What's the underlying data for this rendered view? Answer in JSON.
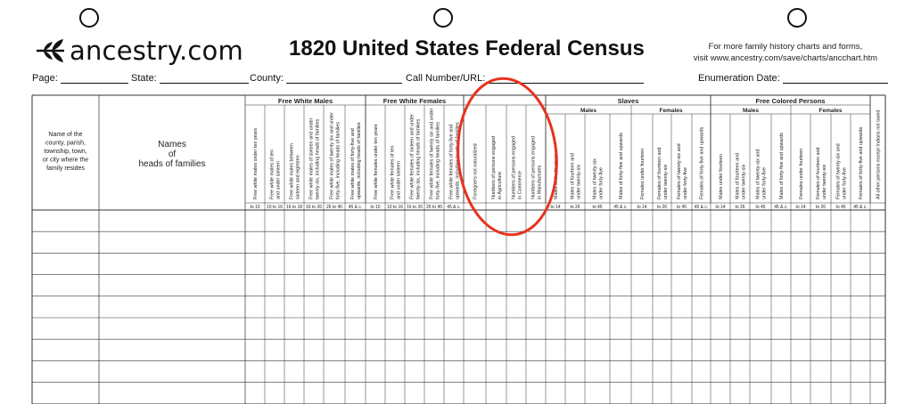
{
  "logo": {
    "text": "ancestry.com"
  },
  "title": "1820 United States Federal Census",
  "promo": {
    "line1": "For more family history charts and forms,",
    "line2": "visit www.ancestry.com/save/charts/ancchart.htm"
  },
  "fields": {
    "page": "Page:",
    "state": "State:",
    "county": "County:",
    "call_number": "Call Number/URL:",
    "enumeration_date": "Enumeration Date:"
  },
  "left_headers": {
    "residence": [
      "Name of the",
      "county, parish,",
      "township, town,",
      "or city where the",
      "family resides"
    ],
    "names": [
      "Names",
      "of",
      "heads of families"
    ]
  },
  "groups": {
    "free_white_males": "Free White Males",
    "free_white_females": "Free White Females",
    "slaves": "Slaves",
    "free_colored": "Free Colored Persons",
    "males": "Males",
    "females": "Females"
  },
  "columns": [
    {
      "lines": [
        "Free white males under ten years"
      ],
      "age": "to 10"
    },
    {
      "lines": [
        "Free white males of ten",
        "and under sixteen"
      ],
      "age": "10 to 16"
    },
    {
      "lines": [
        "Free white males between",
        "sixteen and eighteen"
      ],
      "age": "16 to 18"
    },
    {
      "lines": [
        "Free white males of sixteen and under",
        "twenty-six, including heads of families"
      ],
      "age": "16 to 26"
    },
    {
      "lines": [
        "Free white males of twenty six and under",
        "forty-five, including heads of families"
      ],
      "age": "26 to 45"
    },
    {
      "lines": [
        "Free white males of forty-five and",
        "upwards, including heads of families"
      ],
      "age": "45 & c."
    },
    {
      "lines": [
        "Free white females under ten years"
      ],
      "age": "to 10"
    },
    {
      "lines": [
        "Free white females of ten",
        "and under sixteen"
      ],
      "age": "10 to 16"
    },
    {
      "lines": [
        "Free white females of sixteen and under",
        "twenty-six, including heads of families"
      ],
      "age": "16 to 26"
    },
    {
      "lines": [
        "Free white females of twenty six and under",
        "forty-five, including heads of families"
      ],
      "age": "26 to 45"
    },
    {
      "lines": [
        "Free white females of forty-five and",
        "upwards, including heads of families"
      ],
      "age": "45 & c."
    },
    {
      "lines": [
        "Foreigners not naturalized"
      ],
      "age": ""
    },
    {
      "lines": [
        "Numbers of persons engaged",
        "in Agriculture"
      ],
      "age": ""
    },
    {
      "lines": [
        "Numbers of persons engaged",
        "in Commerce"
      ],
      "age": ""
    },
    {
      "lines": [
        "Numbers of persons engaged",
        "in Manufactures"
      ],
      "age": ""
    },
    {
      "lines": [
        "Males under fourteen"
      ],
      "age": "to 14"
    },
    {
      "lines": [
        "Males of fourteen and",
        "under twenty-six"
      ],
      "age": "to 26"
    },
    {
      "lines": [
        "Males of twenty-six",
        "under forty-five"
      ],
      "age": "to 45"
    },
    {
      "lines": [
        "Males of forty-five and upwards"
      ],
      "age": "45 & c."
    },
    {
      "lines": [
        "Females under fourteen"
      ],
      "age": "to 14"
    },
    {
      "lines": [
        "Females of fourteen and",
        "under twenty-six"
      ],
      "age": "to 26"
    },
    {
      "lines": [
        "Females of twenty-six and",
        "under forty-five"
      ],
      "age": "to 45"
    },
    {
      "lines": [
        "Females of forty-five and upwards"
      ],
      "age": "45 & c."
    },
    {
      "lines": [
        "Males under fourteen"
      ],
      "age": "to 14"
    },
    {
      "lines": [
        "Males of fourteen and",
        "under twenty-six"
      ],
      "age": "to 26"
    },
    {
      "lines": [
        "Males of twenty-six and",
        "under forty-five"
      ],
      "age": "to 45"
    },
    {
      "lines": [
        "Males of forty-five and upwards"
      ],
      "age": "45 & c."
    },
    {
      "lines": [
        "Females under fourteen"
      ],
      "age": "to 14"
    },
    {
      "lines": [
        "Females of fourteen and",
        "under twenty-six"
      ],
      "age": "to 26"
    },
    {
      "lines": [
        "Females of twenty-six and",
        "under forty-five"
      ],
      "age": "to 45"
    },
    {
      "lines": [
        "Females of forty-five and upwards"
      ],
      "age": "45 & c."
    },
    {
      "lines": [
        "All other persons except Indians not taxed"
      ],
      "age": ""
    }
  ],
  "annotation": {
    "color": "#e8321e",
    "shape": "ellipse"
  }
}
